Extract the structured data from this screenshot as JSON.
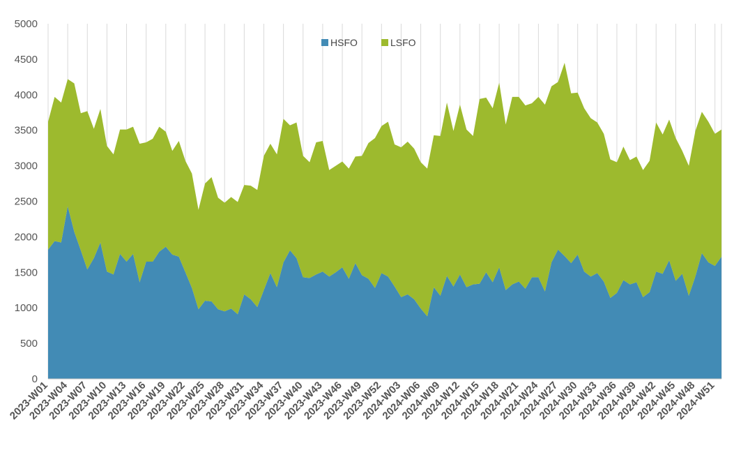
{
  "chart_data": {
    "type": "area",
    "stacked": true,
    "legend_position": "top-center",
    "grid": "vertical",
    "ylim": [
      0,
      5000
    ],
    "yticks": [
      0,
      500,
      1000,
      1500,
      2000,
      2500,
      3000,
      3500,
      4000,
      4500,
      5000
    ],
    "x": [
      "2023-W01",
      "2023-W02",
      "2023-W03",
      "2023-W04",
      "2023-W05",
      "2023-W06",
      "2023-W07",
      "2023-W08",
      "2023-W09",
      "2023-W10",
      "2023-W11",
      "2023-W12",
      "2023-W13",
      "2023-W14",
      "2023-W15",
      "2023-W16",
      "2023-W17",
      "2023-W18",
      "2023-W19",
      "2023-W20",
      "2023-W21",
      "2023-W22",
      "2023-W23",
      "2023-W24",
      "2023-W25",
      "2023-W26",
      "2023-W27",
      "2023-W28",
      "2023-W29",
      "2023-W30",
      "2023-W31",
      "2023-W32",
      "2023-W33",
      "2023-W34",
      "2023-W35",
      "2023-W36",
      "2023-W37",
      "2023-W38",
      "2023-W39",
      "2023-W40",
      "2023-W41",
      "2023-W42",
      "2023-W43",
      "2023-W44",
      "2023-W45",
      "2023-W46",
      "2023-W47",
      "2023-W48",
      "2023-W49",
      "2023-W50",
      "2023-W51",
      "2023-W52",
      "2024-W01",
      "2024-W02",
      "2024-W03",
      "2024-W04",
      "2024-W05",
      "2024-W06",
      "2024-W07",
      "2024-W08",
      "2024-W09",
      "2024-W10",
      "2024-W11",
      "2024-W12",
      "2024-W13",
      "2024-W14",
      "2024-W15",
      "2024-W16",
      "2024-W17",
      "2024-W18",
      "2024-W19",
      "2024-W20",
      "2024-W21",
      "2024-W22",
      "2024-W23",
      "2024-W24",
      "2024-W25",
      "2024-W26",
      "2024-W27",
      "2024-W28",
      "2024-W29",
      "2024-W30",
      "2024-W31",
      "2024-W32",
      "2024-W33",
      "2024-W34",
      "2024-W35",
      "2024-W36",
      "2024-W37",
      "2024-W38",
      "2024-W39",
      "2024-W40",
      "2024-W41",
      "2024-W42",
      "2024-W43",
      "2024-W44",
      "2024-W45",
      "2024-W46",
      "2024-W47",
      "2024-W48",
      "2024-W49",
      "2024-W50",
      "2024-W51",
      "2024-W52"
    ],
    "xtick_labels": [
      "2023-W01",
      "2023-W04",
      "2023-W07",
      "2023-W10",
      "2023-W13",
      "2023-W16",
      "2023-W19",
      "2023-W22",
      "2023-W25",
      "2023-W28",
      "2023-W31",
      "2023-W34",
      "2023-W37",
      "2023-W40",
      "2023-W43",
      "2023-W46",
      "2023-W49",
      "2023-W52",
      "2024-W03",
      "2024-W06",
      "2024-W09",
      "2024-W12",
      "2024-W15",
      "2024-W18",
      "2024-W21",
      "2024-W24",
      "2024-W27",
      "2024-W30",
      "2024-W33",
      "2024-W36",
      "2024-W39",
      "2024-W42",
      "2024-W45",
      "2024-W48",
      "2024-W51"
    ],
    "series": [
      {
        "name": "HSFO",
        "color": "#428bb5",
        "values": [
          1820,
          1940,
          1920,
          2430,
          2070,
          1810,
          1540,
          1700,
          1920,
          1510,
          1470,
          1760,
          1650,
          1760,
          1360,
          1650,
          1650,
          1790,
          1860,
          1750,
          1720,
          1500,
          1280,
          980,
          1100,
          1090,
          980,
          950,
          990,
          910,
          1190,
          1120,
          1010,
          1250,
          1490,
          1290,
          1640,
          1810,
          1700,
          1430,
          1420,
          1470,
          1510,
          1440,
          1500,
          1570,
          1410,
          1630,
          1460,
          1410,
          1280,
          1490,
          1440,
          1300,
          1150,
          1190,
          1120,
          990,
          880,
          1290,
          1170,
          1450,
          1300,
          1470,
          1290,
          1330,
          1340,
          1500,
          1360,
          1570,
          1250,
          1330,
          1370,
          1270,
          1430,
          1430,
          1230,
          1640,
          1820,
          1730,
          1630,
          1750,
          1510,
          1440,
          1490,
          1370,
          1140,
          1210,
          1390,
          1330,
          1360,
          1150,
          1220,
          1510,
          1480,
          1670,
          1380,
          1480,
          1170,
          1440,
          1770,
          1640,
          1590,
          1720
        ]
      },
      {
        "name": "LSFO",
        "color": "#9dba2e",
        "values": [
          1800,
          2030,
          1970,
          1790,
          2090,
          1930,
          2230,
          1820,
          1880,
          1770,
          1690,
          1750,
          1860,
          1790,
          1950,
          1680,
          1730,
          1760,
          1620,
          1460,
          1630,
          1570,
          1610,
          1400,
          1650,
          1750,
          1570,
          1530,
          1570,
          1580,
          1540,
          1600,
          1650,
          1890,
          1820,
          1870,
          2020,
          1760,
          1910,
          1710,
          1630,
          1860,
          1840,
          1500,
          1500,
          1490,
          1550,
          1500,
          1680,
          1910,
          2110,
          2070,
          2180,
          2000,
          2110,
          2150,
          2120,
          2060,
          2080,
          2140,
          2250,
          2440,
          2190,
          2390,
          2220,
          2090,
          2600,
          2460,
          2450,
          2600,
          2330,
          2640,
          2600,
          2580,
          2450,
          2540,
          2630,
          2480,
          2360,
          2720,
          2390,
          2280,
          2300,
          2230,
          2120,
          2080,
          1950,
          1840,
          1880,
          1750,
          1770,
          1790,
          1850,
          2100,
          1960,
          1980,
          2010,
          1730,
          1830,
          2050,
          1990,
          1980,
          1860,
          1790
        ]
      }
    ]
  }
}
